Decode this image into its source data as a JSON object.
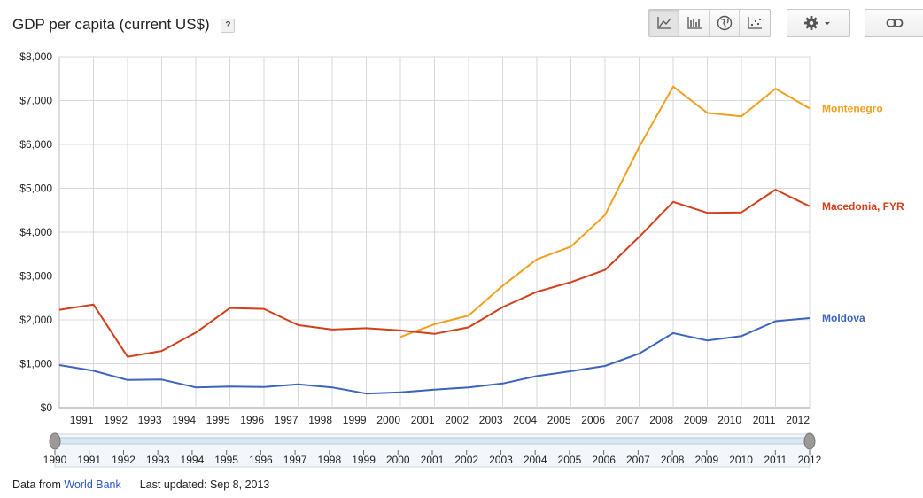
{
  "header": {
    "title": "GDP per capita (current US$)",
    "help_label": "?"
  },
  "toolbar": {
    "chart_types": [
      "line-chart-icon",
      "bar-chart-icon",
      "map-icon",
      "scatter-icon"
    ],
    "active": "line-chart-icon"
  },
  "colors": {
    "montenegro": "#f0a01e",
    "macedonia": "#d0401c",
    "moldova": "#3c64be",
    "grid": "#d9d9d9"
  },
  "chart_data": {
    "type": "line",
    "title": "GDP per capita (current US$)",
    "xlabel": "",
    "ylabel": "",
    "x": [
      1990,
      1991,
      1992,
      1993,
      1994,
      1995,
      1996,
      1997,
      1998,
      1999,
      2000,
      2001,
      2002,
      2003,
      2004,
      2005,
      2006,
      2007,
      2008,
      2009,
      2010,
      2011,
      2012
    ],
    "xlim": [
      1990,
      2012
    ],
    "ylim": [
      0,
      8000
    ],
    "yticks": [
      0,
      1000,
      2000,
      3000,
      4000,
      5000,
      6000,
      7000,
      8000
    ],
    "ytick_labels": [
      "$0",
      "$1,000",
      "$2,000",
      "$3,000",
      "$4,000",
      "$5,000",
      "$6,000",
      "$7,000",
      "$8,000"
    ],
    "xtick_labels": [
      "1991",
      "1992",
      "1993",
      "1994",
      "1995",
      "1996",
      "1997",
      "1998",
      "1999",
      "2000",
      "2001",
      "2002",
      "2003",
      "2004",
      "2005",
      "2006",
      "2007",
      "2008",
      "2009",
      "2010",
      "2011",
      "2012"
    ],
    "grid": true,
    "legend": "right, labels at line ends",
    "series": [
      {
        "name": "Montenegro",
        "color": "#f0a01e",
        "values": [
          null,
          null,
          null,
          null,
          null,
          null,
          null,
          null,
          null,
          null,
          1610,
          1900,
          2100,
          2780,
          3380,
          3670,
          4390,
          5940,
          7320,
          6720,
          6640,
          7270,
          6820
        ]
      },
      {
        "name": "Macedonia, FYR",
        "color": "#d0401c",
        "values": [
          2230,
          2350,
          1160,
          1290,
          1710,
          2270,
          2250,
          1880,
          1780,
          1810,
          1760,
          1680,
          1830,
          2290,
          2640,
          2860,
          3140,
          3890,
          4690,
          4440,
          4450,
          4970,
          4590
        ]
      },
      {
        "name": "Moldova",
        "color": "#3c64be",
        "values": [
          970,
          840,
          630,
          640,
          460,
          480,
          470,
          530,
          460,
          320,
          350,
          410,
          460,
          550,
          720,
          830,
          950,
          1230,
          1700,
          1530,
          1630,
          1970,
          2040
        ]
      }
    ]
  },
  "slider": {
    "labels": [
      "1990",
      "1991",
      "1992",
      "1993",
      "1994",
      "1995",
      "1996",
      "1997",
      "1998",
      "1999",
      "2000",
      "2001",
      "2002",
      "2003",
      "2004",
      "2005",
      "2006",
      "2007",
      "2008",
      "2009",
      "2010",
      "2011",
      "2012"
    ],
    "range_start": "1990",
    "range_end": "2012"
  },
  "footer": {
    "source_prefix": "Data from",
    "source_link": "World Bank",
    "updated": "Last updated: Sep 8, 2013"
  }
}
